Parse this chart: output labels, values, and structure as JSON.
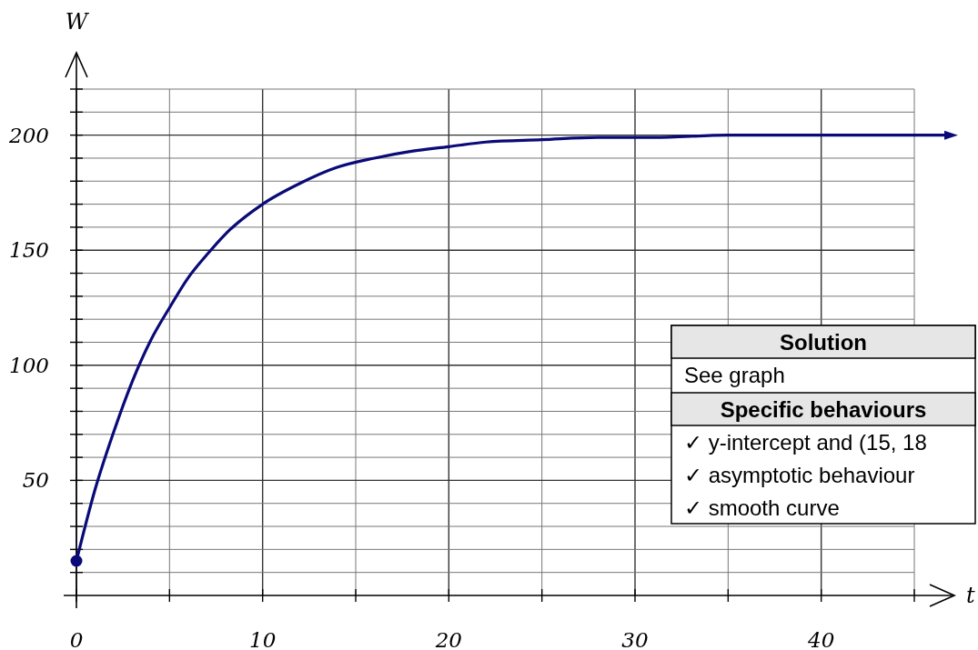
{
  "chart_data": {
    "type": "line",
    "xlabel": "t",
    "ylabel": "W",
    "xlim": [
      0,
      45
    ],
    "ylim": [
      0,
      220
    ],
    "xticks": [
      0,
      {
        "value": 5,
        "label": null
      },
      10,
      {
        "value": 15,
        "label": null
      },
      20,
      {
        "value": 25,
        "label": null
      },
      30,
      {
        "value": 35,
        "label": null
      },
      40,
      {
        "value": 45,
        "label": null
      }
    ],
    "yticks": [
      {
        "value": 10,
        "label": null
      },
      {
        "value": 20,
        "label": null
      },
      {
        "value": 30,
        "label": null
      },
      {
        "value": 40,
        "label": null
      },
      50,
      {
        "value": 60,
        "label": null
      },
      {
        "value": 70,
        "label": null
      },
      {
        "value": 80,
        "label": null
      },
      {
        "value": 90,
        "label": null
      },
      100,
      {
        "value": 110,
        "label": null
      },
      {
        "value": 120,
        "label": null
      },
      {
        "value": 130,
        "label": null
      },
      {
        "value": 140,
        "label": null
      },
      150,
      {
        "value": 160,
        "label": null
      },
      {
        "value": 170,
        "label": null
      },
      {
        "value": 180,
        "label": null
      },
      {
        "value": 190,
        "label": null
      },
      200,
      {
        "value": 210,
        "label": null
      },
      {
        "value": 220,
        "label": null
      }
    ],
    "grid": true,
    "series": [
      {
        "color": "#0a0a78",
        "x": [
          0,
          1,
          2,
          3,
          4,
          5,
          6,
          7,
          8,
          10,
          12,
          14,
          16,
          18,
          20,
          22,
          25,
          28,
          31,
          35,
          40,
          45
        ],
        "values": [
          15,
          46,
          71,
          93,
          111,
          125,
          138,
          148,
          157,
          170,
          179,
          186,
          190,
          193,
          195,
          197,
          198,
          199,
          199,
          200,
          200,
          200
        ]
      },
      {
        "type": "scatter",
        "color": "#0a0a78",
        "marker": "circle",
        "x": [
          0
        ],
        "values": [
          15
        ]
      }
    ],
    "annotations": [
      "Solution",
      "See graph",
      "Specific behaviours",
      "✓ y-intercept and (15, 18",
      "✓ asymptotic behaviour",
      "✓ smooth curve"
    ]
  }
}
